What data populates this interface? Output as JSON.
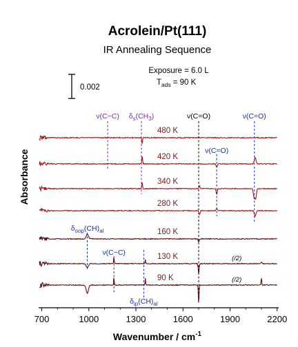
{
  "chart_data": {
    "type": "line",
    "title": "Acrolein/Pt(111)",
    "subtitle": "IR Annealing Sequence",
    "info": {
      "exposure": "Exposure = 6.0 L",
      "tads_prefix": "T",
      "tads_sub": "ads",
      "tads_value": "= 90 K"
    },
    "scale_bar_label": "0.002",
    "xlabel": "Wavenumber / cm",
    "xlabel_sup": "-1",
    "ylabel": "Absorbance",
    "xlim": [
      680,
      2210
    ],
    "x_ticks": [
      700,
      1000,
      1300,
      1600,
      1900,
      2200
    ],
    "colors": {
      "upper_traces": "#a31515",
      "lower_traces": "#5c1010",
      "annotation_purple": "#7a2bb0",
      "annotation_blue": "#1a2fa8",
      "annotation_black": "#000000"
    },
    "series": [
      {
        "label": "480 K",
        "features": [
          [
            1120,
            0.0,
            8
          ],
          [
            1340,
            -10,
            6
          ]
        ]
      },
      {
        "label": "420 K",
        "features": [
          [
            1340,
            12,
            6
          ],
          [
            1815,
            -5,
            10
          ],
          [
            2060,
            10,
            15
          ]
        ]
      },
      {
        "label": "340 K",
        "features": [
          [
            1340,
            10,
            6
          ],
          [
            1705,
            4,
            10
          ],
          [
            1815,
            -8,
            10
          ],
          [
            2055,
            -15,
            15
          ],
          [
            2065,
            -12,
            10
          ]
        ]
      },
      {
        "label": "280 K",
        "features": [
          [
            1705,
            -6,
            10
          ],
          [
            1815,
            3,
            10
          ],
          [
            2060,
            -8,
            15
          ]
        ]
      },
      {
        "label": "160 K",
        "features": [
          [
            990,
            7,
            20
          ],
          [
            1700,
            -4,
            10
          ]
        ]
      },
      {
        "label": "130 K",
        "half": "(/2)",
        "features": [
          [
            990,
            -6,
            20
          ],
          [
            1160,
            10,
            5
          ],
          [
            1360,
            6,
            5
          ],
          [
            1700,
            -15,
            8
          ],
          [
            2100,
            2,
            10
          ]
        ]
      },
      {
        "label": "90 K",
        "half": "(/2)",
        "features": [
          [
            990,
            -12,
            20
          ],
          [
            1160,
            12,
            5
          ],
          [
            1360,
            10,
            5
          ],
          [
            1700,
            -28,
            6
          ],
          [
            2100,
            12,
            5
          ]
        ]
      }
    ],
    "annotations": [
      {
        "text": "ν(C−C)",
        "x": 1120,
        "color": "purple"
      },
      {
        "text_main": "δ",
        "text_sub": "s",
        "text_rest": "(CH",
        "text_sub2": "3",
        "text_end": ")",
        "x": 1335,
        "color": "purple"
      },
      {
        "text": "ν(C=O)",
        "x": 1700,
        "color": "black"
      },
      {
        "text": "ν(C=O)",
        "x": 2055,
        "color": "blue"
      },
      {
        "text": "ν(C=O)",
        "x": 1815,
        "color": "blue"
      },
      {
        "text_main": "δ",
        "text_sub": "oop",
        "text_rest": "(CH)",
        "text_sub2": "al",
        "x": 990,
        "color": "blue"
      },
      {
        "text": "ν(C−C)",
        "x": 1160,
        "color": "blue"
      },
      {
        "text_main": "δ",
        "text_sub": "ip",
        "text_rest": "(CH)",
        "text_sub2": "al",
        "x": 1350,
        "color": "blue"
      }
    ]
  }
}
